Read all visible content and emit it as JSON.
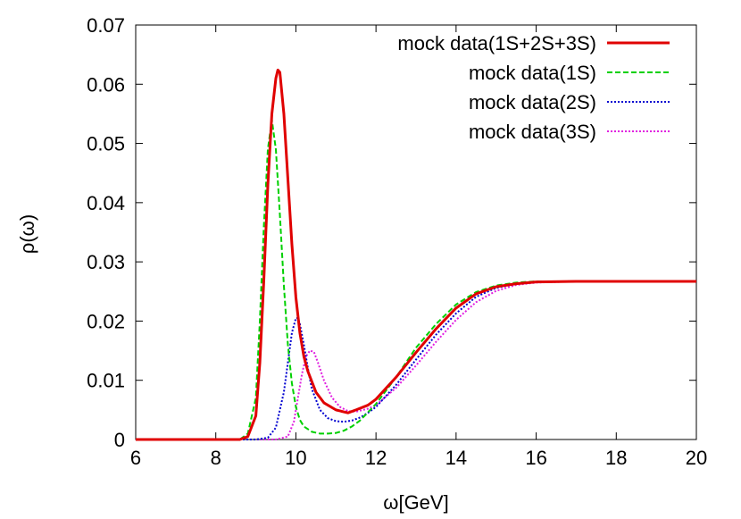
{
  "chart_data": {
    "type": "line",
    "xlabel": "ω[GeV]",
    "ylabel": "ρ(ω)",
    "xlim": [
      6,
      20
    ],
    "ylim": [
      0,
      0.07
    ],
    "x_ticks": [
      "6",
      "8",
      "10",
      "12",
      "14",
      "16",
      "18",
      "20"
    ],
    "y_ticks": [
      "0",
      "0.01",
      "0.02",
      "0.03",
      "0.04",
      "0.05",
      "0.06",
      "0.07"
    ],
    "legend_position": "top-right",
    "series": [
      {
        "name": "mock data(1S+2S+3S)",
        "color": "#e00000",
        "dash": "solid",
        "x": [
          6,
          8,
          8.6,
          8.8,
          9.0,
          9.1,
          9.2,
          9.3,
          9.4,
          9.5,
          9.55,
          9.6,
          9.7,
          9.8,
          9.9,
          10.0,
          10.1,
          10.2,
          10.3,
          10.5,
          10.7,
          11.0,
          11.3,
          11.5,
          11.8,
          12.0,
          12.5,
          13.0,
          13.5,
          14.0,
          14.5,
          15.0,
          15.5,
          16.0,
          17.0,
          18.0,
          20.0
        ],
        "y": [
          0,
          0,
          0,
          0.0005,
          0.004,
          0.013,
          0.027,
          0.043,
          0.055,
          0.061,
          0.0624,
          0.062,
          0.055,
          0.044,
          0.033,
          0.024,
          0.018,
          0.014,
          0.0115,
          0.008,
          0.0062,
          0.005,
          0.0045,
          0.005,
          0.0058,
          0.0068,
          0.0105,
          0.0147,
          0.0187,
          0.0222,
          0.0246,
          0.0258,
          0.0263,
          0.0266,
          0.0267,
          0.0267,
          0.0267
        ]
      },
      {
        "name": "mock data(1S)",
        "color": "#00d000",
        "dash": "dashed",
        "x": [
          6,
          8,
          8.6,
          8.8,
          9.0,
          9.1,
          9.2,
          9.3,
          9.4,
          9.5,
          9.6,
          9.7,
          9.8,
          9.9,
          10.0,
          10.1,
          10.2,
          10.4,
          10.6,
          10.8,
          11.0,
          11.2,
          11.4,
          11.6,
          12.0,
          12.5,
          13.0,
          13.5,
          14.0,
          14.5,
          15.0,
          15.5,
          16.0,
          17.0,
          18.0,
          20.0
        ],
        "y": [
          0,
          0,
          0,
          0.001,
          0.007,
          0.02,
          0.036,
          0.049,
          0.054,
          0.049,
          0.038,
          0.026,
          0.016,
          0.0095,
          0.0055,
          0.0033,
          0.0022,
          0.0013,
          0.001,
          0.001,
          0.0011,
          0.0015,
          0.0022,
          0.0032,
          0.006,
          0.0105,
          0.0155,
          0.0195,
          0.0228,
          0.0249,
          0.026,
          0.0265,
          0.0267,
          0.0267,
          0.0267,
          0.0267
        ]
      },
      {
        "name": "mock data(2S)",
        "color": "#0000d0",
        "dash": "dotted",
        "x": [
          6,
          9.0,
          9.3,
          9.5,
          9.7,
          9.8,
          9.9,
          10.0,
          10.05,
          10.1,
          10.2,
          10.3,
          10.4,
          10.6,
          10.8,
          11.0,
          11.2,
          11.4,
          11.6,
          11.8,
          12.0,
          12.5,
          13.0,
          13.5,
          14.0,
          14.5,
          15.0,
          15.5,
          16.0,
          17.0,
          18.0,
          20.0
        ],
        "y": [
          0,
          0,
          0.0003,
          0.002,
          0.008,
          0.013,
          0.018,
          0.0205,
          0.0205,
          0.0195,
          0.016,
          0.012,
          0.0085,
          0.005,
          0.0036,
          0.0031,
          0.003,
          0.0032,
          0.0037,
          0.0045,
          0.0055,
          0.0092,
          0.0135,
          0.0177,
          0.0213,
          0.0241,
          0.0256,
          0.0263,
          0.0266,
          0.0267,
          0.0267,
          0.0267
        ]
      },
      {
        "name": "mock data(3S)",
        "color": "#e020e0",
        "dash": "dotted",
        "x": [
          6,
          9.5,
          9.8,
          9.95,
          10.05,
          10.15,
          10.25,
          10.35,
          10.45,
          10.55,
          10.7,
          10.9,
          11.1,
          11.3,
          11.5,
          11.8,
          12.0,
          12.5,
          13.0,
          13.5,
          14.0,
          14.5,
          15.0,
          15.5,
          16.0,
          17.0,
          18.0,
          20.0
        ],
        "y": [
          0,
          0,
          0.0005,
          0.003,
          0.007,
          0.011,
          0.014,
          0.015,
          0.0148,
          0.013,
          0.01,
          0.0071,
          0.0055,
          0.0048,
          0.0047,
          0.0052,
          0.0058,
          0.0087,
          0.0125,
          0.0165,
          0.0202,
          0.0232,
          0.0251,
          0.0261,
          0.0265,
          0.0267,
          0.0267,
          0.0267
        ]
      }
    ]
  }
}
